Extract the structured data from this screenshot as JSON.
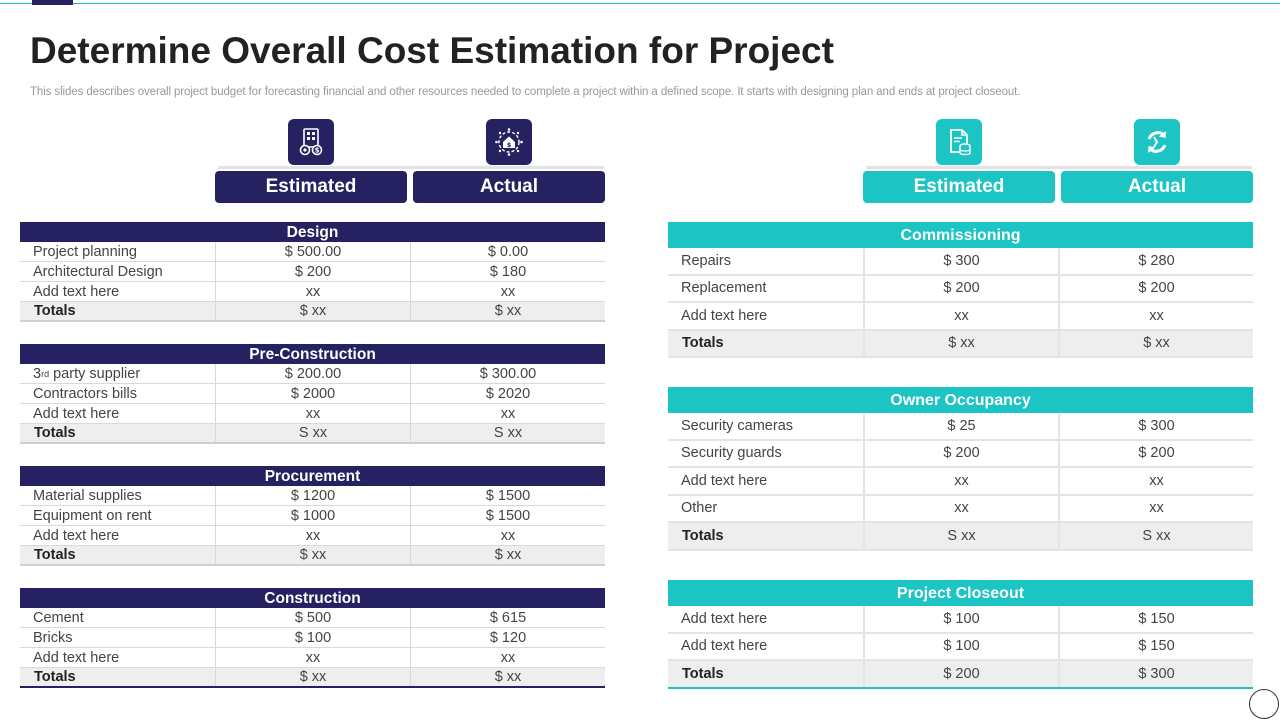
{
  "title": "Determine Overall Cost Estimation for Project",
  "subtitle": "This slides describes overall project budget for forecasting financial and other resources needed to complete a project within a defined scope. It starts with designing plan and ends at project closeout.",
  "colors": {
    "navy": "#262261",
    "teal": "#1cc4c4"
  },
  "left_panel": {
    "columns": [
      "Estimated",
      "Actual"
    ],
    "icons": [
      "building-budget-icon",
      "house-cost-gear-icon"
    ],
    "sections": [
      {
        "name": "Design",
        "rows": [
          {
            "label": "Project planning",
            "estimated": "$ 500.00",
            "actual": "$ 0.00"
          },
          {
            "label": "Architectural Design",
            "estimated": "$ 200",
            "actual": "$ 180"
          },
          {
            "label": "Add text here",
            "estimated": "xx",
            "actual": "xx"
          }
        ],
        "totals": {
          "label": "Totals",
          "estimated": "$ xx",
          "actual": "$ xx"
        }
      },
      {
        "name": "Pre-Construction",
        "rows": [
          {
            "label": "3",
            "label_sup": "rd",
            "label_rest": " party supplier",
            "estimated": "$ 200.00",
            "actual": "$ 300.00"
          },
          {
            "label": "Contractors bills",
            "estimated": "$ 2000",
            "actual": "$ 2020"
          },
          {
            "label": "Add text here",
            "estimated": "xx",
            "actual": "xx"
          }
        ],
        "totals": {
          "label": "Totals",
          "estimated": "S xx",
          "actual": "S xx"
        }
      },
      {
        "name": "Procurement",
        "rows": [
          {
            "label": "Material supplies",
            "estimated": "$ 1200",
            "actual": "$ 1500"
          },
          {
            "label": "Equipment on rent",
            "estimated": "$ 1000",
            "actual": "$ 1500"
          },
          {
            "label": "Add text here",
            "estimated": "xx",
            "actual": "xx"
          }
        ],
        "totals": {
          "label": "Totals",
          "estimated": "$ xx",
          "actual": "$ xx"
        }
      },
      {
        "name": "Construction",
        "rows": [
          {
            "label": "Cement",
            "estimated": "$ 500",
            "actual": "$ 615"
          },
          {
            "label": "Bricks",
            "estimated": "$ 100",
            "actual": "$ 120"
          },
          {
            "label": "Add text here",
            "estimated": "xx",
            "actual": "xx"
          }
        ],
        "totals": {
          "label": "Totals",
          "estimated": "$ xx",
          "actual": "$ xx"
        }
      }
    ]
  },
  "right_panel": {
    "columns": [
      "Estimated",
      "Actual"
    ],
    "icons": [
      "document-database-icon",
      "refresh-arrows-icon"
    ],
    "sections": [
      {
        "name": "Commissioning",
        "rows": [
          {
            "label": "Repairs",
            "estimated": "$ 300",
            "actual": "$ 280"
          },
          {
            "label": "Replacement",
            "estimated": "$ 200",
            "actual": "$ 200"
          },
          {
            "label": "Add text here",
            "estimated": "xx",
            "actual": "xx"
          }
        ],
        "totals": {
          "label": "Totals",
          "estimated": "$ xx",
          "actual": "$ xx"
        }
      },
      {
        "name": "Owner Occupancy",
        "rows": [
          {
            "label": "Security cameras",
            "estimated": "$ 25",
            "actual": "$ 300"
          },
          {
            "label": "Security guards",
            "estimated": "$ 200",
            "actual": "$ 200"
          },
          {
            "label": "Add text here",
            "estimated": "xx",
            "actual": "xx"
          },
          {
            "label": "Other",
            "estimated": "xx",
            "actual": "xx"
          }
        ],
        "totals": {
          "label": "Totals",
          "estimated": "S xx",
          "actual": "S xx"
        }
      },
      {
        "name": "Project Closeout",
        "rows": [
          {
            "label": "Add text here",
            "estimated": "$ 100",
            "actual": "$ 150"
          },
          {
            "label": "Add text here",
            "estimated": "$ 100",
            "actual": "$ 150"
          }
        ],
        "totals": {
          "label": "Totals",
          "estimated": "$ 200",
          "actual": "$ 300"
        }
      }
    ]
  }
}
